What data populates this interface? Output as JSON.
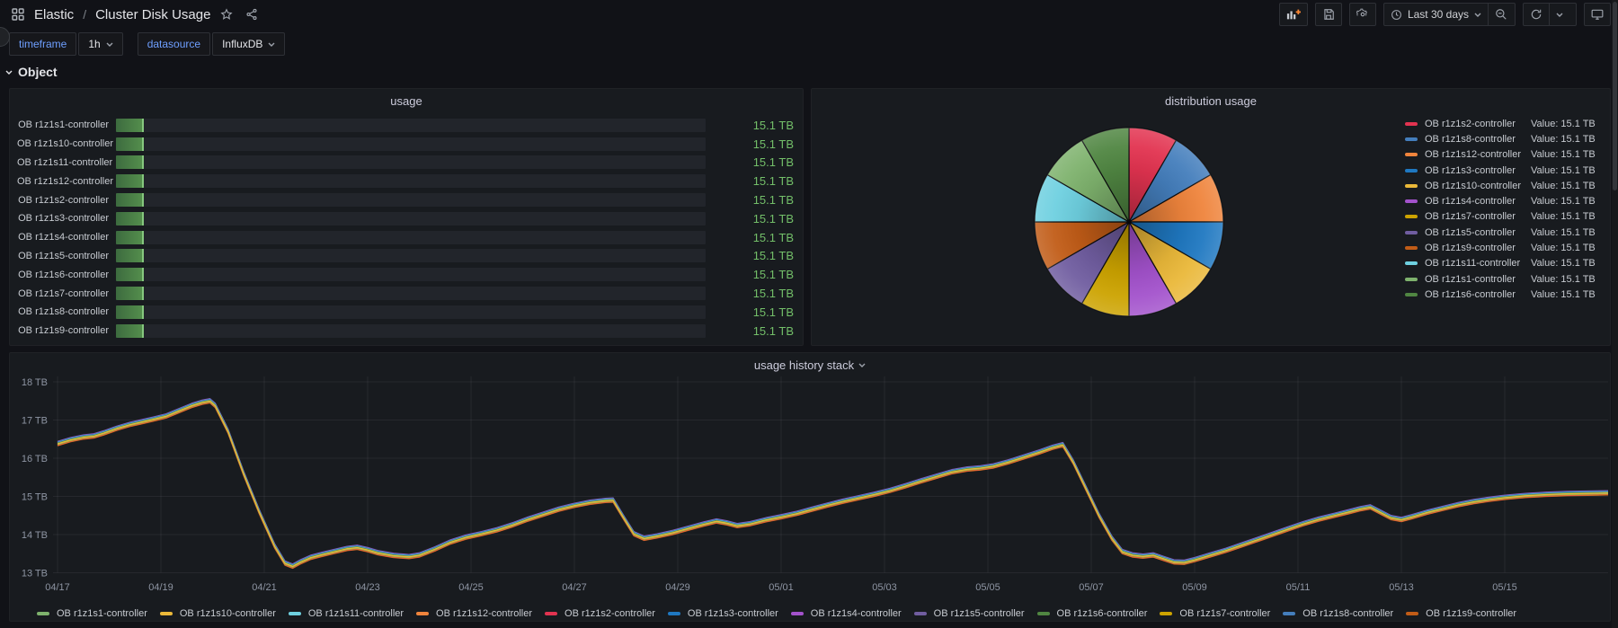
{
  "nav": {
    "folder": "Elastic",
    "separator": "/",
    "dashboard_title": "Cluster Disk Usage",
    "time_range_label": "Last 30 days"
  },
  "variables": [
    {
      "label": "timeframe",
      "value": "1h"
    },
    {
      "label": "datasource",
      "value": "InfluxDB"
    }
  ],
  "row_header": {
    "title": "Object"
  },
  "colors": {
    "value_green": "#73bf69",
    "gauge_fill_start": "#3d6b3f",
    "gauge_fill_end": "#55904d",
    "link_blue": "#6e9fff",
    "panel_bg": "#181b1f",
    "page_bg": "#111217",
    "add_panel_plus_orange": "#ff8833"
  },
  "series_colors": {
    "OB r1z1s1-controller": "#7EB26D",
    "OB r1z1s10-controller": "#EAB839",
    "OB r1z1s11-controller": "#6ED0E0",
    "OB r1z1s12-controller": "#EF843C",
    "OB r1z1s2-controller": "#E23350",
    "OB r1z1s3-controller": "#1F78C1",
    "OB r1z1s4-controller": "#A352CC",
    "OB r1z1s5-controller": "#705DA0",
    "OB r1z1s6-controller": "#508642",
    "OB r1z1s7-controller": "#CCA300",
    "OB r1z1s8-controller": "#447EBC",
    "OB r1z1s9-controller": "#C15C17"
  },
  "usage_panel": {
    "title": "usage",
    "rows": [
      {
        "name": "OB r1z1s1-controller",
        "value": "15.1 TB"
      },
      {
        "name": "OB r1z1s10-controller",
        "value": "15.1 TB"
      },
      {
        "name": "OB r1z1s11-controller",
        "value": "15.1 TB"
      },
      {
        "name": "OB r1z1s12-controller",
        "value": "15.1 TB"
      },
      {
        "name": "OB r1z1s2-controller",
        "value": "15.1 TB"
      },
      {
        "name": "OB r1z1s3-controller",
        "value": "15.1 TB"
      },
      {
        "name": "OB r1z1s4-controller",
        "value": "15.1 TB"
      },
      {
        "name": "OB r1z1s5-controller",
        "value": "15.1 TB"
      },
      {
        "name": "OB r1z1s6-controller",
        "value": "15.1 TB"
      },
      {
        "name": "OB r1z1s7-controller",
        "value": "15.1 TB"
      },
      {
        "name": "OB r1z1s8-controller",
        "value": "15.1 TB"
      },
      {
        "name": "OB r1z1s9-controller",
        "value": "15.1 TB"
      }
    ]
  },
  "pie_panel": {
    "title": "distribution usage",
    "legend": [
      {
        "name": "OB r1z1s2-controller",
        "value": "Value: 15.1 TB"
      },
      {
        "name": "OB r1z1s8-controller",
        "value": "Value: 15.1 TB"
      },
      {
        "name": "OB r1z1s12-controller",
        "value": "Value: 15.1 TB"
      },
      {
        "name": "OB r1z1s3-controller",
        "value": "Value: 15.1 TB"
      },
      {
        "name": "OB r1z1s10-controller",
        "value": "Value: 15.1 TB"
      },
      {
        "name": "OB r1z1s4-controller",
        "value": "Value: 15.1 TB"
      },
      {
        "name": "OB r1z1s7-controller",
        "value": "Value: 15.1 TB"
      },
      {
        "name": "OB r1z1s5-controller",
        "value": "Value: 15.1 TB"
      },
      {
        "name": "OB r1z1s9-controller",
        "value": "Value: 15.1 TB"
      },
      {
        "name": "OB r1z1s11-controller",
        "value": "Value: 15.1 TB"
      },
      {
        "name": "OB r1z1s1-controller",
        "value": "Value: 15.1 TB"
      },
      {
        "name": "OB r1z1s6-controller",
        "value": "Value: 15.1 TB"
      }
    ]
  },
  "history_panel": {
    "title": "usage history stack",
    "legend": [
      "OB r1z1s1-controller",
      "OB r1z1s10-controller",
      "OB r1z1s11-controller",
      "OB r1z1s12-controller",
      "OB r1z1s2-controller",
      "OB r1z1s3-controller",
      "OB r1z1s4-controller",
      "OB r1z1s5-controller",
      "OB r1z1s6-controller",
      "OB r1z1s7-controller",
      "OB r1z1s8-controller",
      "OB r1z1s9-controller"
    ]
  },
  "chart_data": [
    {
      "type": "bar",
      "orientation": "horizontal",
      "title": "usage",
      "categories": [
        "OB r1z1s1-controller",
        "OB r1z1s10-controller",
        "OB r1z1s11-controller",
        "OB r1z1s12-controller",
        "OB r1z1s2-controller",
        "OB r1z1s3-controller",
        "OB r1z1s4-controller",
        "OB r1z1s5-controller",
        "OB r1z1s6-controller",
        "OB r1z1s7-controller",
        "OB r1z1s8-controller",
        "OB r1z1s9-controller"
      ],
      "values": [
        15.1,
        15.1,
        15.1,
        15.1,
        15.1,
        15.1,
        15.1,
        15.1,
        15.1,
        15.1,
        15.1,
        15.1
      ],
      "unit": "TB",
      "display_values": "15.1 TB",
      "fill_ratio": 0.047
    },
    {
      "type": "pie",
      "title": "distribution usage",
      "labels": [
        "OB r1z1s2-controller",
        "OB r1z1s8-controller",
        "OB r1z1s12-controller",
        "OB r1z1s3-controller",
        "OB r1z1s10-controller",
        "OB r1z1s4-controller",
        "OB r1z1s7-controller",
        "OB r1z1s5-controller",
        "OB r1z1s9-controller",
        "OB r1z1s11-controller",
        "OB r1z1s1-controller",
        "OB r1z1s6-controller"
      ],
      "values": [
        15.1,
        15.1,
        15.1,
        15.1,
        15.1,
        15.1,
        15.1,
        15.1,
        15.1,
        15.1,
        15.1,
        15.1
      ],
      "unit": "TB",
      "legend_position": "right"
    },
    {
      "type": "line",
      "title": "usage history stack",
      "ylabel": "",
      "y_unit": "TB",
      "ylim": [
        13,
        18
      ],
      "y_ticks": [
        "18 TB",
        "17 TB",
        "16 TB",
        "15 TB",
        "14 TB",
        "13 TB"
      ],
      "x_ticks": [
        "04/17",
        "04/19",
        "04/21",
        "04/23",
        "04/25",
        "04/27",
        "04/29",
        "05/01",
        "05/03",
        "05/05",
        "05/07",
        "05/09",
        "05/11",
        "05/13",
        "05/15"
      ],
      "x_days_per_tick": 2,
      "series_names": [
        "OB r1z1s1-controller",
        "OB r1z1s10-controller",
        "OB r1z1s11-controller",
        "OB r1z1s12-controller",
        "OB r1z1s2-controller",
        "OB r1z1s3-controller",
        "OB r1z1s4-controller",
        "OB r1z1s5-controller",
        "OB r1z1s6-controller",
        "OB r1z1s7-controller",
        "OB r1z1s8-controller",
        "OB r1z1s9-controller"
      ],
      "note": "all 12 series overlap with nearly identical values; shared curve below as [days since 04/17, TB]",
      "points": [
        [
          0,
          16.38
        ],
        [
          0.25,
          16.48
        ],
        [
          0.5,
          16.55
        ],
        [
          0.7,
          16.58
        ],
        [
          0.9,
          16.66
        ],
        [
          1.15,
          16.78
        ],
        [
          1.4,
          16.88
        ],
        [
          1.6,
          16.94
        ],
        [
          1.85,
          17.02
        ],
        [
          2.1,
          17.1
        ],
        [
          2.35,
          17.24
        ],
        [
          2.6,
          17.38
        ],
        [
          2.8,
          17.46
        ],
        [
          2.95,
          17.5
        ],
        [
          3.05,
          17.38
        ],
        [
          3.3,
          16.7
        ],
        [
          3.6,
          15.6
        ],
        [
          3.9,
          14.6
        ],
        [
          4.2,
          13.7
        ],
        [
          4.4,
          13.25
        ],
        [
          4.55,
          13.17
        ],
        [
          4.7,
          13.28
        ],
        [
          4.9,
          13.4
        ],
        [
          5.1,
          13.47
        ],
        [
          5.35,
          13.55
        ],
        [
          5.6,
          13.63
        ],
        [
          5.8,
          13.66
        ],
        [
          6.0,
          13.6
        ],
        [
          6.2,
          13.52
        ],
        [
          6.5,
          13.45
        ],
        [
          6.8,
          13.42
        ],
        [
          7.0,
          13.46
        ],
        [
          7.3,
          13.62
        ],
        [
          7.6,
          13.8
        ],
        [
          7.9,
          13.93
        ],
        [
          8.2,
          14.02
        ],
        [
          8.5,
          14.12
        ],
        [
          8.8,
          14.25
        ],
        [
          9.1,
          14.4
        ],
        [
          9.4,
          14.53
        ],
        [
          9.7,
          14.66
        ],
        [
          10.0,
          14.76
        ],
        [
          10.3,
          14.84
        ],
        [
          10.6,
          14.89
        ],
        [
          10.75,
          14.9
        ],
        [
          10.95,
          14.45
        ],
        [
          11.15,
          14.02
        ],
        [
          11.35,
          13.9
        ],
        [
          11.6,
          13.96
        ],
        [
          11.9,
          14.05
        ],
        [
          12.2,
          14.16
        ],
        [
          12.5,
          14.27
        ],
        [
          12.75,
          14.35
        ],
        [
          12.95,
          14.3
        ],
        [
          13.15,
          14.23
        ],
        [
          13.4,
          14.28
        ],
        [
          13.7,
          14.38
        ],
        [
          14.0,
          14.46
        ],
        [
          14.3,
          14.55
        ],
        [
          14.6,
          14.66
        ],
        [
          14.9,
          14.77
        ],
        [
          15.2,
          14.87
        ],
        [
          15.5,
          14.96
        ],
        [
          15.8,
          15.05
        ],
        [
          16.1,
          15.15
        ],
        [
          16.4,
          15.27
        ],
        [
          16.7,
          15.4
        ],
        [
          17.0,
          15.52
        ],
        [
          17.3,
          15.64
        ],
        [
          17.6,
          15.71
        ],
        [
          17.85,
          15.74
        ],
        [
          18.1,
          15.79
        ],
        [
          18.4,
          15.9
        ],
        [
          18.7,
          16.03
        ],
        [
          19.0,
          16.16
        ],
        [
          19.25,
          16.28
        ],
        [
          19.45,
          16.35
        ],
        [
          19.65,
          15.9
        ],
        [
          19.9,
          15.2
        ],
        [
          20.15,
          14.5
        ],
        [
          20.4,
          13.9
        ],
        [
          20.6,
          13.55
        ],
        [
          20.8,
          13.46
        ],
        [
          21.0,
          13.43
        ],
        [
          21.2,
          13.46
        ],
        [
          21.4,
          13.37
        ],
        [
          21.6,
          13.28
        ],
        [
          21.8,
          13.27
        ],
        [
          22.0,
          13.34
        ],
        [
          22.3,
          13.46
        ],
        [
          22.6,
          13.58
        ],
        [
          22.9,
          13.72
        ],
        [
          23.2,
          13.86
        ],
        [
          23.5,
          14.0
        ],
        [
          23.8,
          14.14
        ],
        [
          24.1,
          14.28
        ],
        [
          24.4,
          14.4
        ],
        [
          24.7,
          14.5
        ],
        [
          25.0,
          14.6
        ],
        [
          25.2,
          14.67
        ],
        [
          25.4,
          14.72
        ],
        [
          25.6,
          14.58
        ],
        [
          25.8,
          14.44
        ],
        [
          26.0,
          14.39
        ],
        [
          26.2,
          14.46
        ],
        [
          26.5,
          14.58
        ],
        [
          26.8,
          14.68
        ],
        [
          27.1,
          14.78
        ],
        [
          27.4,
          14.86
        ],
        [
          27.7,
          14.92
        ],
        [
          28.0,
          14.97
        ],
        [
          28.4,
          15.02
        ],
        [
          28.8,
          15.05
        ],
        [
          29.2,
          15.07
        ],
        [
          29.6,
          15.08
        ],
        [
          30.0,
          15.09
        ]
      ]
    }
  ]
}
